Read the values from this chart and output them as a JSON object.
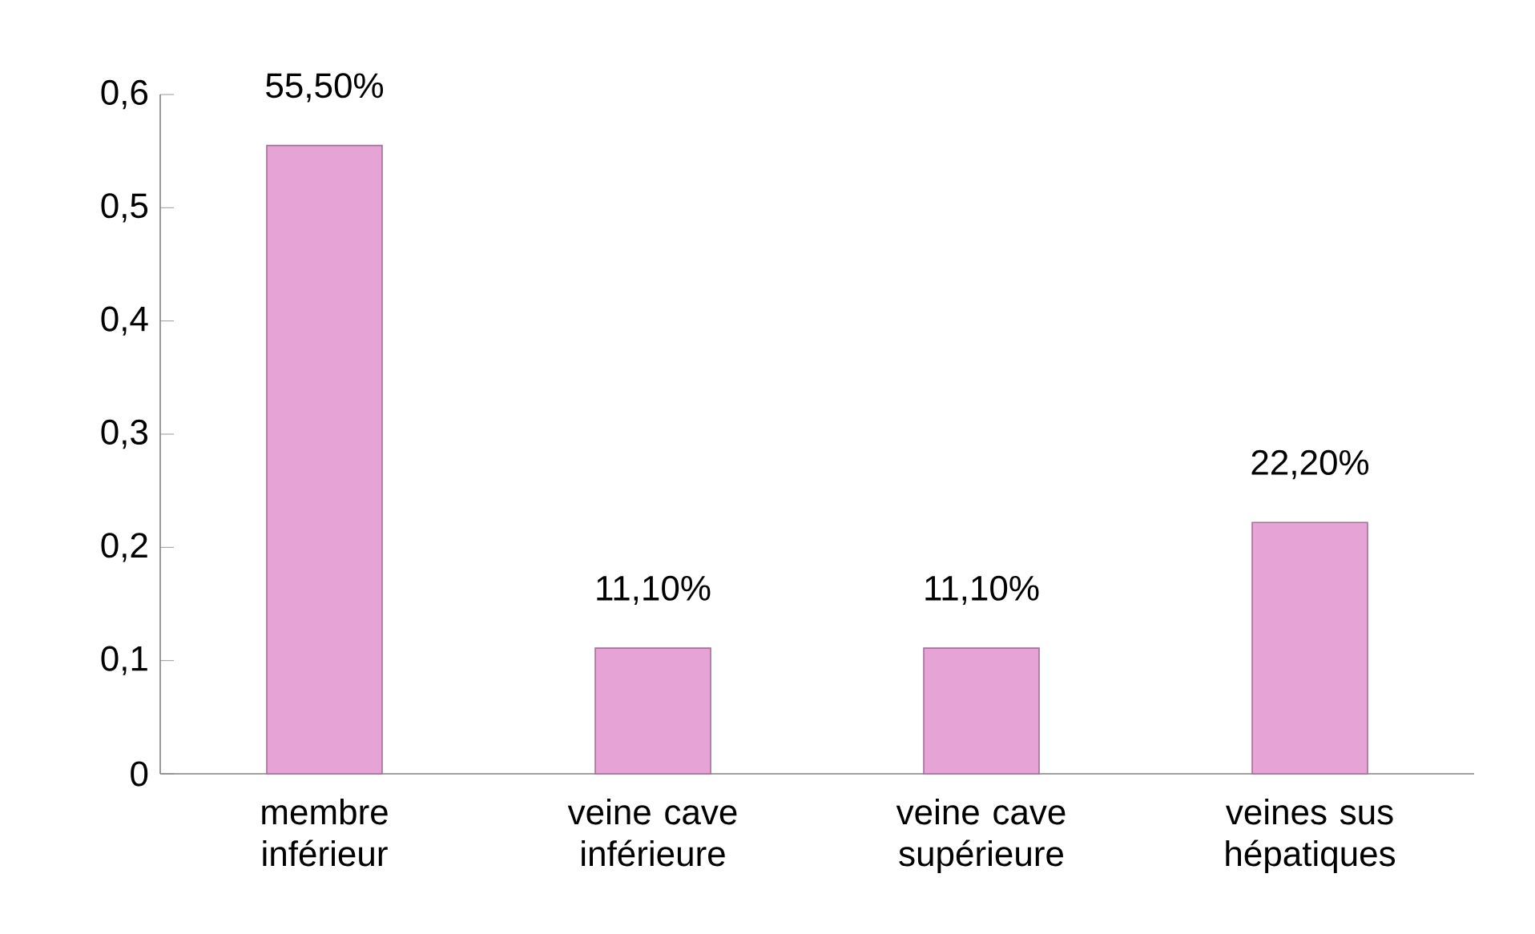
{
  "chart_data": {
    "type": "bar",
    "categories": [
      "membre inférieur",
      "veine cave inférieure",
      "veine cave supérieure",
      "veines sus hépatiques"
    ],
    "values": [
      0.555,
      0.111,
      0.111,
      0.222
    ],
    "value_labels": [
      "55,50%",
      "11,10%",
      "11,10%",
      "22,20%"
    ],
    "color": "#e6a3d6",
    "ylim": [
      0,
      0.6
    ],
    "yticks": [
      {
        "value": 0,
        "label": "0"
      },
      {
        "value": 0.1,
        "label": "0,1"
      },
      {
        "value": 0.2,
        "label": "0,2"
      },
      {
        "value": 0.3,
        "label": "0,3"
      },
      {
        "value": 0.4,
        "label": "0,4"
      },
      {
        "value": 0.5,
        "label": "0,5"
      },
      {
        "value": 0.6,
        "label": "0,6"
      }
    ],
    "grid": false
  }
}
